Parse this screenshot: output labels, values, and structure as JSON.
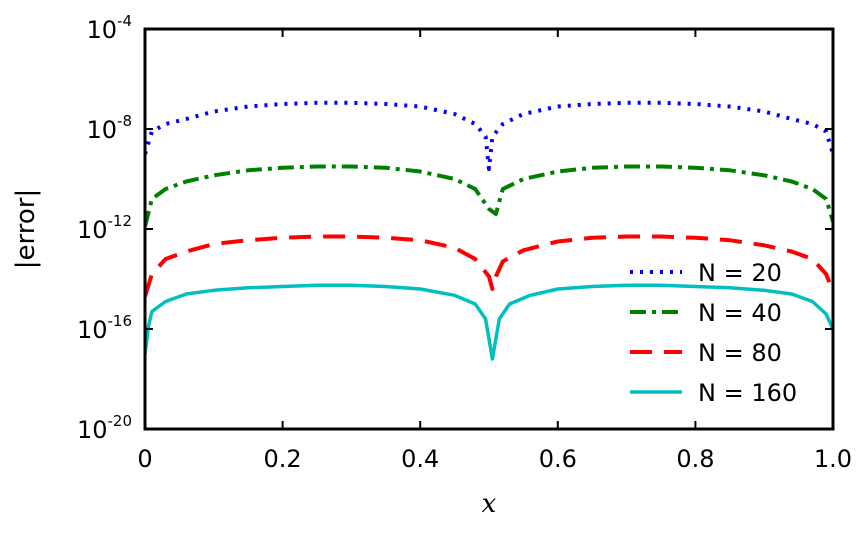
{
  "chart_data": {
    "type": "line",
    "xlabel": "x",
    "ylabel": "|error|",
    "xlim": [
      0,
      1
    ],
    "ylim_log10": [
      -20,
      -4
    ],
    "y_scale": "log",
    "x_tick_labels": [
      "0",
      "0.2",
      "0.4",
      "0.6",
      "0.8",
      "1.0"
    ],
    "x_tick_values": [
      0,
      0.2,
      0.4,
      0.6,
      0.8,
      1.0
    ],
    "y_ticks": [
      {
        "base": "10",
        "exp": "-4",
        "log10": -4
      },
      {
        "base": "10",
        "exp": "-8",
        "log10": -8
      },
      {
        "base": "10",
        "exp": "-12",
        "log10": -12
      },
      {
        "base": "10",
        "exp": "-16",
        "log10": -16
      },
      {
        "base": "10",
        "exp": "-20",
        "log10": -20
      }
    ],
    "legend_position": "lower right",
    "grid": false,
    "series": [
      {
        "name": "N = 20",
        "color": "#0000ff",
        "style": "dotted",
        "x": [
          0,
          0.01,
          0.03,
          0.06,
          0.1,
          0.15,
          0.2,
          0.25,
          0.3,
          0.35,
          0.4,
          0.45,
          0.48,
          0.495,
          0.5,
          0.505,
          0.52,
          0.55,
          0.6,
          0.65,
          0.7,
          0.75,
          0.8,
          0.85,
          0.9,
          0.94,
          0.97,
          0.99,
          1.0
        ],
        "log10_y": [
          -9.0,
          -8.1,
          -7.8,
          -7.6,
          -7.3,
          -7.1,
          -7.0,
          -6.95,
          -6.95,
          -7.0,
          -7.1,
          -7.4,
          -7.8,
          -8.3,
          -9.6,
          -8.3,
          -7.8,
          -7.4,
          -7.1,
          -7.0,
          -6.95,
          -6.95,
          -7.0,
          -7.1,
          -7.3,
          -7.6,
          -7.8,
          -8.1,
          -9.0
        ]
      },
      {
        "name": "N = 40",
        "color": "#008000",
        "style": "dashdot",
        "x": [
          0,
          0.01,
          0.03,
          0.06,
          0.1,
          0.15,
          0.2,
          0.25,
          0.3,
          0.35,
          0.4,
          0.45,
          0.48,
          0.5,
          0.51,
          0.52,
          0.55,
          0.6,
          0.65,
          0.7,
          0.75,
          0.8,
          0.85,
          0.9,
          0.94,
          0.97,
          0.99,
          1.0
        ],
        "log10_y": [
          -11.9,
          -10.8,
          -10.4,
          -10.1,
          -9.85,
          -9.65,
          -9.55,
          -9.5,
          -9.5,
          -9.55,
          -9.7,
          -10.0,
          -10.4,
          -11.2,
          -11.4,
          -10.4,
          -10.0,
          -9.7,
          -9.55,
          -9.5,
          -9.5,
          -9.55,
          -9.65,
          -9.85,
          -10.1,
          -10.4,
          -10.8,
          -11.7
        ]
      },
      {
        "name": "N = 80",
        "color": "#ff0000",
        "style": "dashed",
        "x": [
          0,
          0.01,
          0.03,
          0.06,
          0.1,
          0.15,
          0.2,
          0.25,
          0.3,
          0.35,
          0.4,
          0.45,
          0.48,
          0.5,
          0.505,
          0.51,
          0.52,
          0.55,
          0.6,
          0.65,
          0.7,
          0.75,
          0.8,
          0.85,
          0.9,
          0.94,
          0.97,
          0.99,
          1.0
        ],
        "log10_y": [
          -14.7,
          -13.8,
          -13.2,
          -12.9,
          -12.6,
          -12.45,
          -12.35,
          -12.3,
          -12.3,
          -12.35,
          -12.45,
          -12.75,
          -13.2,
          -13.9,
          -14.4,
          -13.9,
          -13.3,
          -12.85,
          -12.5,
          -12.35,
          -12.3,
          -12.3,
          -12.35,
          -12.45,
          -12.65,
          -12.9,
          -13.2,
          -13.8,
          -14.5
        ]
      },
      {
        "name": "N = 160",
        "color": "#00bfbf",
        "style": "solid",
        "x": [
          0,
          0.005,
          0.01,
          0.03,
          0.06,
          0.1,
          0.15,
          0.2,
          0.25,
          0.3,
          0.35,
          0.4,
          0.45,
          0.48,
          0.495,
          0.505,
          0.515,
          0.53,
          0.56,
          0.6,
          0.65,
          0.7,
          0.75,
          0.8,
          0.85,
          0.9,
          0.94,
          0.97,
          0.99,
          1.0
        ],
        "log10_y": [
          -17.0,
          -15.9,
          -15.3,
          -14.9,
          -14.6,
          -14.45,
          -14.35,
          -14.3,
          -14.25,
          -14.25,
          -14.3,
          -14.4,
          -14.65,
          -15.0,
          -15.6,
          -17.2,
          -15.6,
          -15.0,
          -14.65,
          -14.4,
          -14.3,
          -14.25,
          -14.25,
          -14.3,
          -14.35,
          -14.45,
          -14.6,
          -14.9,
          -15.4,
          -16.0
        ]
      }
    ]
  }
}
